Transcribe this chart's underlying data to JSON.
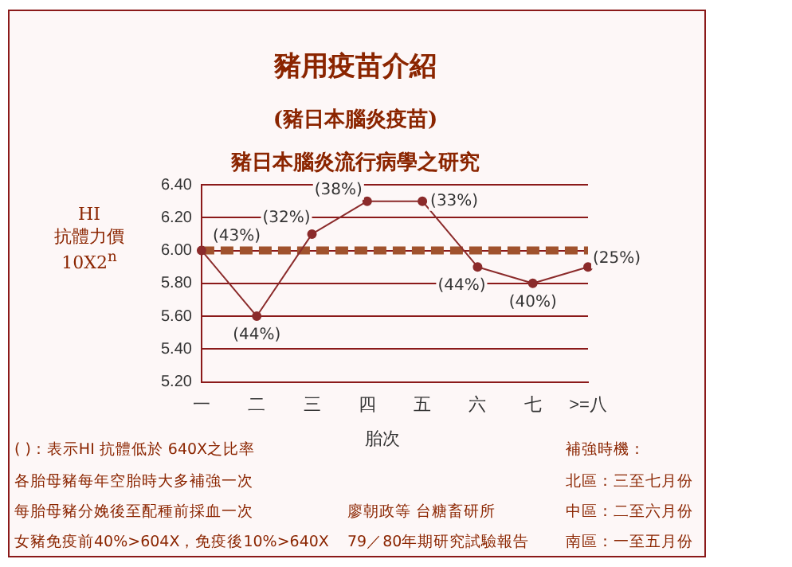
{
  "chart_data": {
    "type": "line",
    "title": "豬用疫苗介紹",
    "subtitle": "(豬日本腦炎疫苗)\n豬日本腦炎流行病學之研究",
    "xlabel": "胎次",
    "ylabel": "HI 抗體力價 10X2$^{n}$",
    "categories": [
      "一",
      "二",
      "三",
      "四",
      "五",
      "六",
      "七",
      ">=八"
    ],
    "series": [
      {
        "color": "#8b2b2b",
        "values": [
          6.0,
          5.6,
          6.1,
          6.3,
          6.3,
          5.9,
          5.8,
          5.9
        ]
      }
    ],
    "ylim": [
      5.2,
      6.4
    ],
    "yticks": [
      {
        "value": 5.2,
        "label": "5.20"
      },
      {
        "value": 5.4,
        "label": "5.40"
      },
      {
        "value": 5.6,
        "label": "5.60"
      },
      {
        "value": 5.8,
        "label": "5.80"
      },
      {
        "value": 6.0,
        "label": "6.00"
      },
      {
        "value": 6.2,
        "label": "6.20"
      },
      {
        "value": 6.4,
        "label": "6.40"
      }
    ],
    "grid": "y",
    "marker": "circle",
    "line_style": "solid",
    "legend": false,
    "ref_lines": [
      {
        "axis": "y",
        "value": 6.0,
        "color": "#a0522d",
        "line_style": "dashed"
      }
    ],
    "annotations": [
      {
        "text": "(43%)",
        "x": "一",
        "y": 6.0
      },
      {
        "text": "(44%)",
        "x": "二",
        "y": 5.6
      },
      {
        "text": "(32%)",
        "x": "三",
        "y": 6.1
      },
      {
        "text": "(38%)",
        "x": "四",
        "y": 6.3
      },
      {
        "text": "(33%)",
        "x": "五",
        "y": 6.3
      },
      {
        "text": "(44%)",
        "x": "六",
        "y": 5.9
      },
      {
        "text": "(40%)",
        "x": "七",
        "y": 5.8
      },
      {
        "text": "(25%)",
        "x": ">=八",
        "y": 5.9
      },
      "( )：表示HI 抗體低於 640X之比率",
      "各胎母豬每年空胎時大多補強一次",
      "每胎母豬分娩後至配種前採血一次",
      "女豬免疫前40%>604X，免疫後10%>640X",
      "廖朝政等 台糖畜研所",
      "79／80年期研究試驗報告",
      "補強時機：",
      "北區：三至七月份",
      "中區：二至六月份",
      "南區：一至五月份"
    ]
  }
}
